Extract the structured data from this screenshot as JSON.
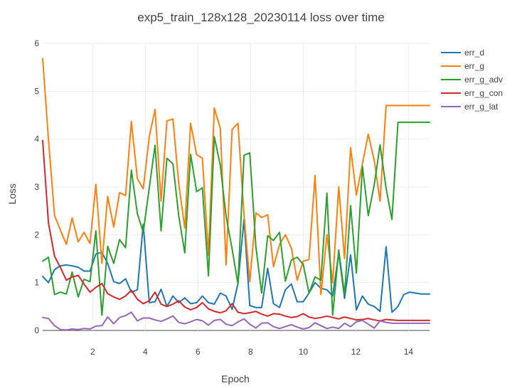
{
  "chart_data": {
    "type": "line",
    "title": "exp5_train_128x128_20230114 loss over time",
    "xlabel": "Epoch",
    "ylabel": "Loss",
    "xlim": [
      0.1,
      14.8
    ],
    "ylim": [
      0,
      6
    ],
    "xticks": [
      2,
      4,
      6,
      8,
      10,
      12,
      14
    ],
    "yticks": [
      0,
      1,
      2,
      3,
      4,
      5,
      6
    ],
    "legend_position": "top-right",
    "grid": true,
    "x": [
      0.1,
      0.32,
      0.55,
      0.77,
      1,
      1.22,
      1.45,
      1.67,
      1.9,
      2.12,
      2.35,
      2.57,
      2.8,
      3.02,
      3.25,
      3.47,
      3.7,
      3.92,
      4.15,
      4.37,
      4.6,
      4.82,
      5.05,
      5.27,
      5.5,
      5.72,
      5.95,
      6.17,
      6.4,
      6.62,
      6.85,
      7.07,
      7.3,
      7.52,
      7.75,
      7.97,
      8.2,
      8.42,
      8.65,
      8.87,
      9.1,
      9.32,
      9.55,
      9.77,
      10,
      10.22,
      10.45,
      10.67,
      10.9,
      11.12,
      11.35,
      11.57,
      11.8,
      12.02,
      12.25,
      12.47,
      12.7,
      12.92,
      13.15,
      13.37,
      13.6,
      13.82,
      14.05,
      14.27,
      14.5,
      14.8
    ],
    "series": [
      {
        "name": "err_d",
        "color": "#1f77b4",
        "values": [
          1.13,
          1.0,
          1.27,
          1.35,
          1.37,
          1.35,
          1.32,
          1.24,
          1.24,
          1.6,
          1.63,
          1.4,
          1.02,
          0.98,
          1.08,
          0.8,
          0.85,
          2.22,
          0.58,
          0.6,
          0.86,
          0.5,
          0.72,
          0.58,
          0.68,
          0.56,
          0.58,
          0.72,
          0.58,
          0.55,
          0.78,
          0.72,
          0.44,
          0.98,
          2.32,
          0.52,
          0.48,
          0.48,
          1.3,
          0.56,
          0.48,
          0.85,
          0.97,
          0.6,
          0.6,
          0.78,
          1.0,
          0.88,
          0.85,
          0.72,
          1.62,
          0.67,
          1.58,
          0.43,
          0.72,
          0.55,
          0.5,
          0.4,
          1.75,
          0.38,
          0.5,
          0.75,
          0.8,
          0.78,
          0.76,
          0.76
        ]
      },
      {
        "name": "err_g",
        "color": "#ff7f0e",
        "values": [
          5.68,
          4.0,
          2.4,
          2.1,
          1.8,
          2.35,
          1.85,
          2.05,
          1.82,
          3.05,
          1.4,
          2.8,
          2.16,
          2.88,
          2.82,
          4.37,
          3.17,
          2.96,
          4.05,
          4.62,
          2.7,
          4.38,
          4.42,
          3.07,
          2.14,
          4.33,
          3.67,
          3.6,
          1.57,
          4.65,
          4.22,
          1.37,
          4.2,
          4.33,
          2.42,
          1.02,
          2.46,
          2.36,
          2.42,
          1.33,
          1.8,
          2.0,
          1.72,
          1.05,
          1.45,
          1.48,
          3.24,
          0.75,
          2.0,
          1.0,
          3.0,
          1.5,
          3.82,
          2.83,
          3.48,
          4.1,
          3.55,
          2.7,
          4.7,
          4.7,
          4.7,
          4.7,
          4.7,
          4.7,
          4.7,
          4.7
        ]
      },
      {
        "name": "err_g_adv",
        "color": "#2ca02c",
        "values": [
          1.45,
          1.53,
          0.75,
          0.8,
          0.76,
          1.22,
          0.7,
          1.07,
          1.02,
          2.08,
          0.32,
          1.76,
          1.4,
          1.9,
          1.73,
          3.35,
          2.44,
          2.05,
          2.98,
          3.87,
          2.08,
          3.6,
          3.48,
          2.4,
          1.62,
          3.68,
          2.9,
          2.98,
          1.14,
          4.05,
          3.45,
          2.38,
          1.7,
          0.97,
          3.66,
          3.71,
          1.75,
          0.78,
          1.98,
          1.88,
          2.05,
          1.03,
          1.47,
          1.53,
          1.38,
          0.78,
          1.12,
          1.05,
          2.87,
          0.32,
          1.68,
          0.75,
          2.61,
          1.2,
          3.43,
          2.4,
          3.05,
          3.88,
          2.97,
          2.32,
          4.35,
          4.35,
          4.35,
          4.35,
          4.35,
          4.35
        ]
      },
      {
        "name": "err_g_con",
        "color": "#d62728",
        "values": [
          3.97,
          2.25,
          1.55,
          1.32,
          1.05,
          1.12,
          1.15,
          0.97,
          0.8,
          0.9,
          0.98,
          0.77,
          0.7,
          0.65,
          0.72,
          0.84,
          0.65,
          0.56,
          0.62,
          0.8,
          0.55,
          0.5,
          0.55,
          0.62,
          0.49,
          0.43,
          0.48,
          0.58,
          0.45,
          0.4,
          0.37,
          0.41,
          0.56,
          0.38,
          0.35,
          0.37,
          0.4,
          0.34,
          0.3,
          0.35,
          0.34,
          0.3,
          0.27,
          0.29,
          0.35,
          0.28,
          0.25,
          0.27,
          0.3,
          0.27,
          0.24,
          0.28,
          0.25,
          0.22,
          0.23,
          0.25,
          0.22,
          0.2,
          0.23,
          0.22,
          0.21,
          0.21,
          0.21,
          0.21,
          0.21,
          0.21
        ]
      },
      {
        "name": "err_g_lat",
        "color": "#9467bd",
        "values": [
          0.27,
          0.25,
          0.1,
          0.02,
          0.01,
          0.03,
          0.02,
          0.04,
          0.03,
          0.09,
          0.1,
          0.28,
          0.14,
          0.27,
          0.31,
          0.38,
          0.2,
          0.26,
          0.26,
          0.22,
          0.19,
          0.24,
          0.3,
          0.17,
          0.14,
          0.18,
          0.23,
          0.2,
          0.11,
          0.21,
          0.23,
          0.13,
          0.1,
          0.18,
          0.24,
          0.13,
          0.05,
          0.15,
          0.16,
          0.08,
          0.04,
          0.08,
          0.12,
          0.07,
          0.03,
          0.06,
          0.16,
          0.1,
          0.04,
          0.07,
          0.04,
          0.15,
          0.08,
          0.18,
          0.21,
          0.13,
          0.05,
          0.2,
          0.17,
          0.15,
          0.15,
          0.15,
          0.15,
          0.15,
          0.15,
          0.15
        ]
      }
    ]
  }
}
